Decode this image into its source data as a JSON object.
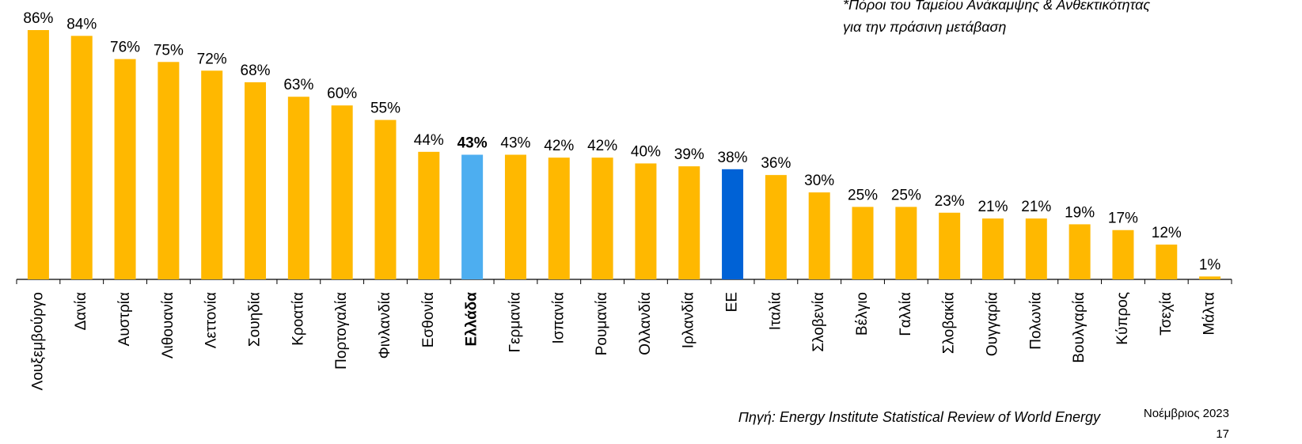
{
  "chart_data": {
    "type": "bar",
    "annotation": [
      "*Πόροι του Ταμείου Ανάκαμψης & Ανθεκτικότητας",
      "για την πράσινη μετάβαση"
    ],
    "source": "Πηγή: Energy Institute Statistical Review of World Energy",
    "date": "Νοέμβριος 2023",
    "page": "17",
    "categories": [
      "Λουξεμβούργο",
      "Δανία",
      "Αυστρία",
      "Λιθουανία",
      "Λεττονία",
      "Σουηδία",
      "Κροατία",
      "Πορτογαλία",
      "Φινλανδία",
      "Εσθονία",
      "Ελλάδα",
      "Γερμανία",
      "Ισπανία",
      "Ρουμανία",
      "Ολλανδία",
      "Ιρλανδία",
      "ΕΕ",
      "Ιταλία",
      "Σλοβενία",
      "Βέλγιο",
      "Γαλλία",
      "Σλοβακία",
      "Ουγγαρία",
      "Πολωνία",
      "Βουλγαρία",
      "Κύπρος",
      "Τσεχία",
      "Μάλτα"
    ],
    "values": [
      86,
      84,
      76,
      75,
      72,
      68,
      63,
      60,
      55,
      44,
      43,
      43,
      42,
      42,
      40,
      39,
      38,
      36,
      30,
      25,
      25,
      23,
      21,
      21,
      19,
      17,
      12,
      1
    ],
    "value_labels": [
      "86%",
      "84%",
      "76%",
      "75%",
      "72%",
      "68%",
      "63%",
      "60%",
      "55%",
      "44%",
      "43%",
      "43%",
      "42%",
      "42%",
      "40%",
      "39%",
      "38%",
      "36%",
      "30%",
      "25%",
      "25%",
      "23%",
      "21%",
      "21%",
      "19%",
      "17%",
      "12%",
      "1%"
    ],
    "colors": [
      "#FFB800",
      "#FFB800",
      "#FFB800",
      "#FFB800",
      "#FFB800",
      "#FFB800",
      "#FFB800",
      "#FFB800",
      "#FFB800",
      "#FFB800",
      "#4DAEF0",
      "#FFB800",
      "#FFB800",
      "#FFB800",
      "#FFB800",
      "#FFB800",
      "#0062D6",
      "#FFB800",
      "#FFB800",
      "#FFB800",
      "#FFB800",
      "#FFB800",
      "#FFB800",
      "#FFB800",
      "#FFB800",
      "#FFB800",
      "#FFB800",
      "#FFB800"
    ],
    "emphasis": "Ελλάδα"
  }
}
